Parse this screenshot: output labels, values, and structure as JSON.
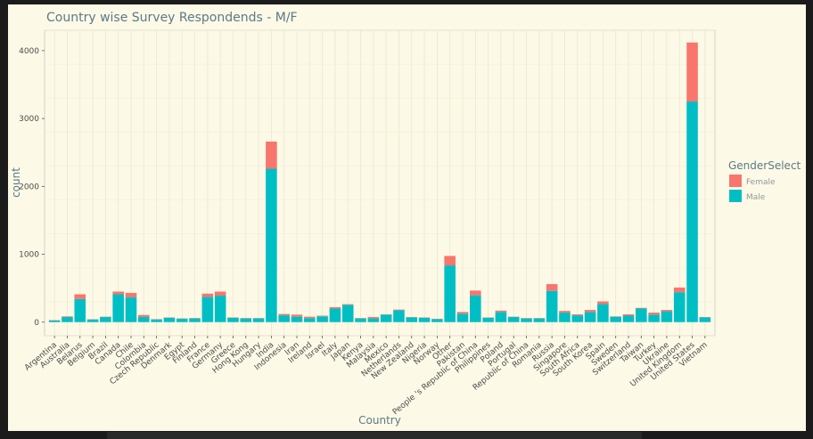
{
  "chart_data": {
    "type": "bar",
    "stacked": true,
    "title": "Country wise Survey Respondends - M/F",
    "xlabel": "Country",
    "ylabel": "count",
    "ylim": [
      -200,
      4300
    ],
    "yticks": [
      0,
      1000,
      2000,
      3000,
      4000
    ],
    "grid": true,
    "legend": {
      "title": "GenderSelect",
      "placement": "right"
    },
    "categories": [
      "Argentina",
      "Australia",
      "Belarus",
      "Belgium",
      "Brazil",
      "Canada",
      "Chile",
      "Colombia",
      "Czech Republic",
      "Denmark",
      "Egypt",
      "Finland",
      "France",
      "Germany",
      "Greece",
      "Hong Kong",
      "Hungary",
      "India",
      "Indonesia",
      "Iran",
      "Ireland",
      "Israel",
      "Italy",
      "Japan",
      "Kenya",
      "Malaysia",
      "Mexico",
      "Netherlands",
      "New Zealand",
      "Nigeria",
      "Norway",
      "Other",
      "Pakistan",
      "People 's Republic of China",
      "Philippines",
      "Poland",
      "Portugal",
      "Republic of China",
      "Romania",
      "Russia",
      "Singapore",
      "South Africa",
      "South Korea",
      "Spain",
      "Sweden",
      "Switzerland",
      "Taiwan",
      "Turkey",
      "Ukraine",
      "United Kingdom",
      "United States",
      "Vietnam"
    ],
    "series": [
      {
        "name": "Female",
        "color": "#f8766d",
        "values": [
          5,
          10,
          70,
          3,
          5,
          40,
          65,
          30,
          5,
          5,
          5,
          5,
          50,
          60,
          5,
          5,
          5,
          400,
          20,
          30,
          20,
          10,
          20,
          10,
          5,
          20,
          5,
          10,
          5,
          5,
          5,
          140,
          25,
          70,
          5,
          20,
          5,
          5,
          5,
          100,
          25,
          15,
          30,
          40,
          5,
          20,
          10,
          30,
          20,
          70,
          870,
          5
        ]
      },
      {
        "name": "Male",
        "color": "#00bfc4",
        "values": [
          25,
          75,
          340,
          40,
          75,
          410,
          365,
          75,
          40,
          65,
          50,
          55,
          370,
          390,
          65,
          55,
          55,
          2260,
          100,
          80,
          60,
          85,
          200,
          255,
          55,
          55,
          110,
          175,
          70,
          65,
          45,
          835,
          125,
          395,
          65,
          150,
          75,
          55,
          55,
          460,
          140,
          100,
          150,
          265,
          80,
          95,
          200,
          110,
          160,
          440,
          3250,
          70
        ]
      }
    ]
  }
}
